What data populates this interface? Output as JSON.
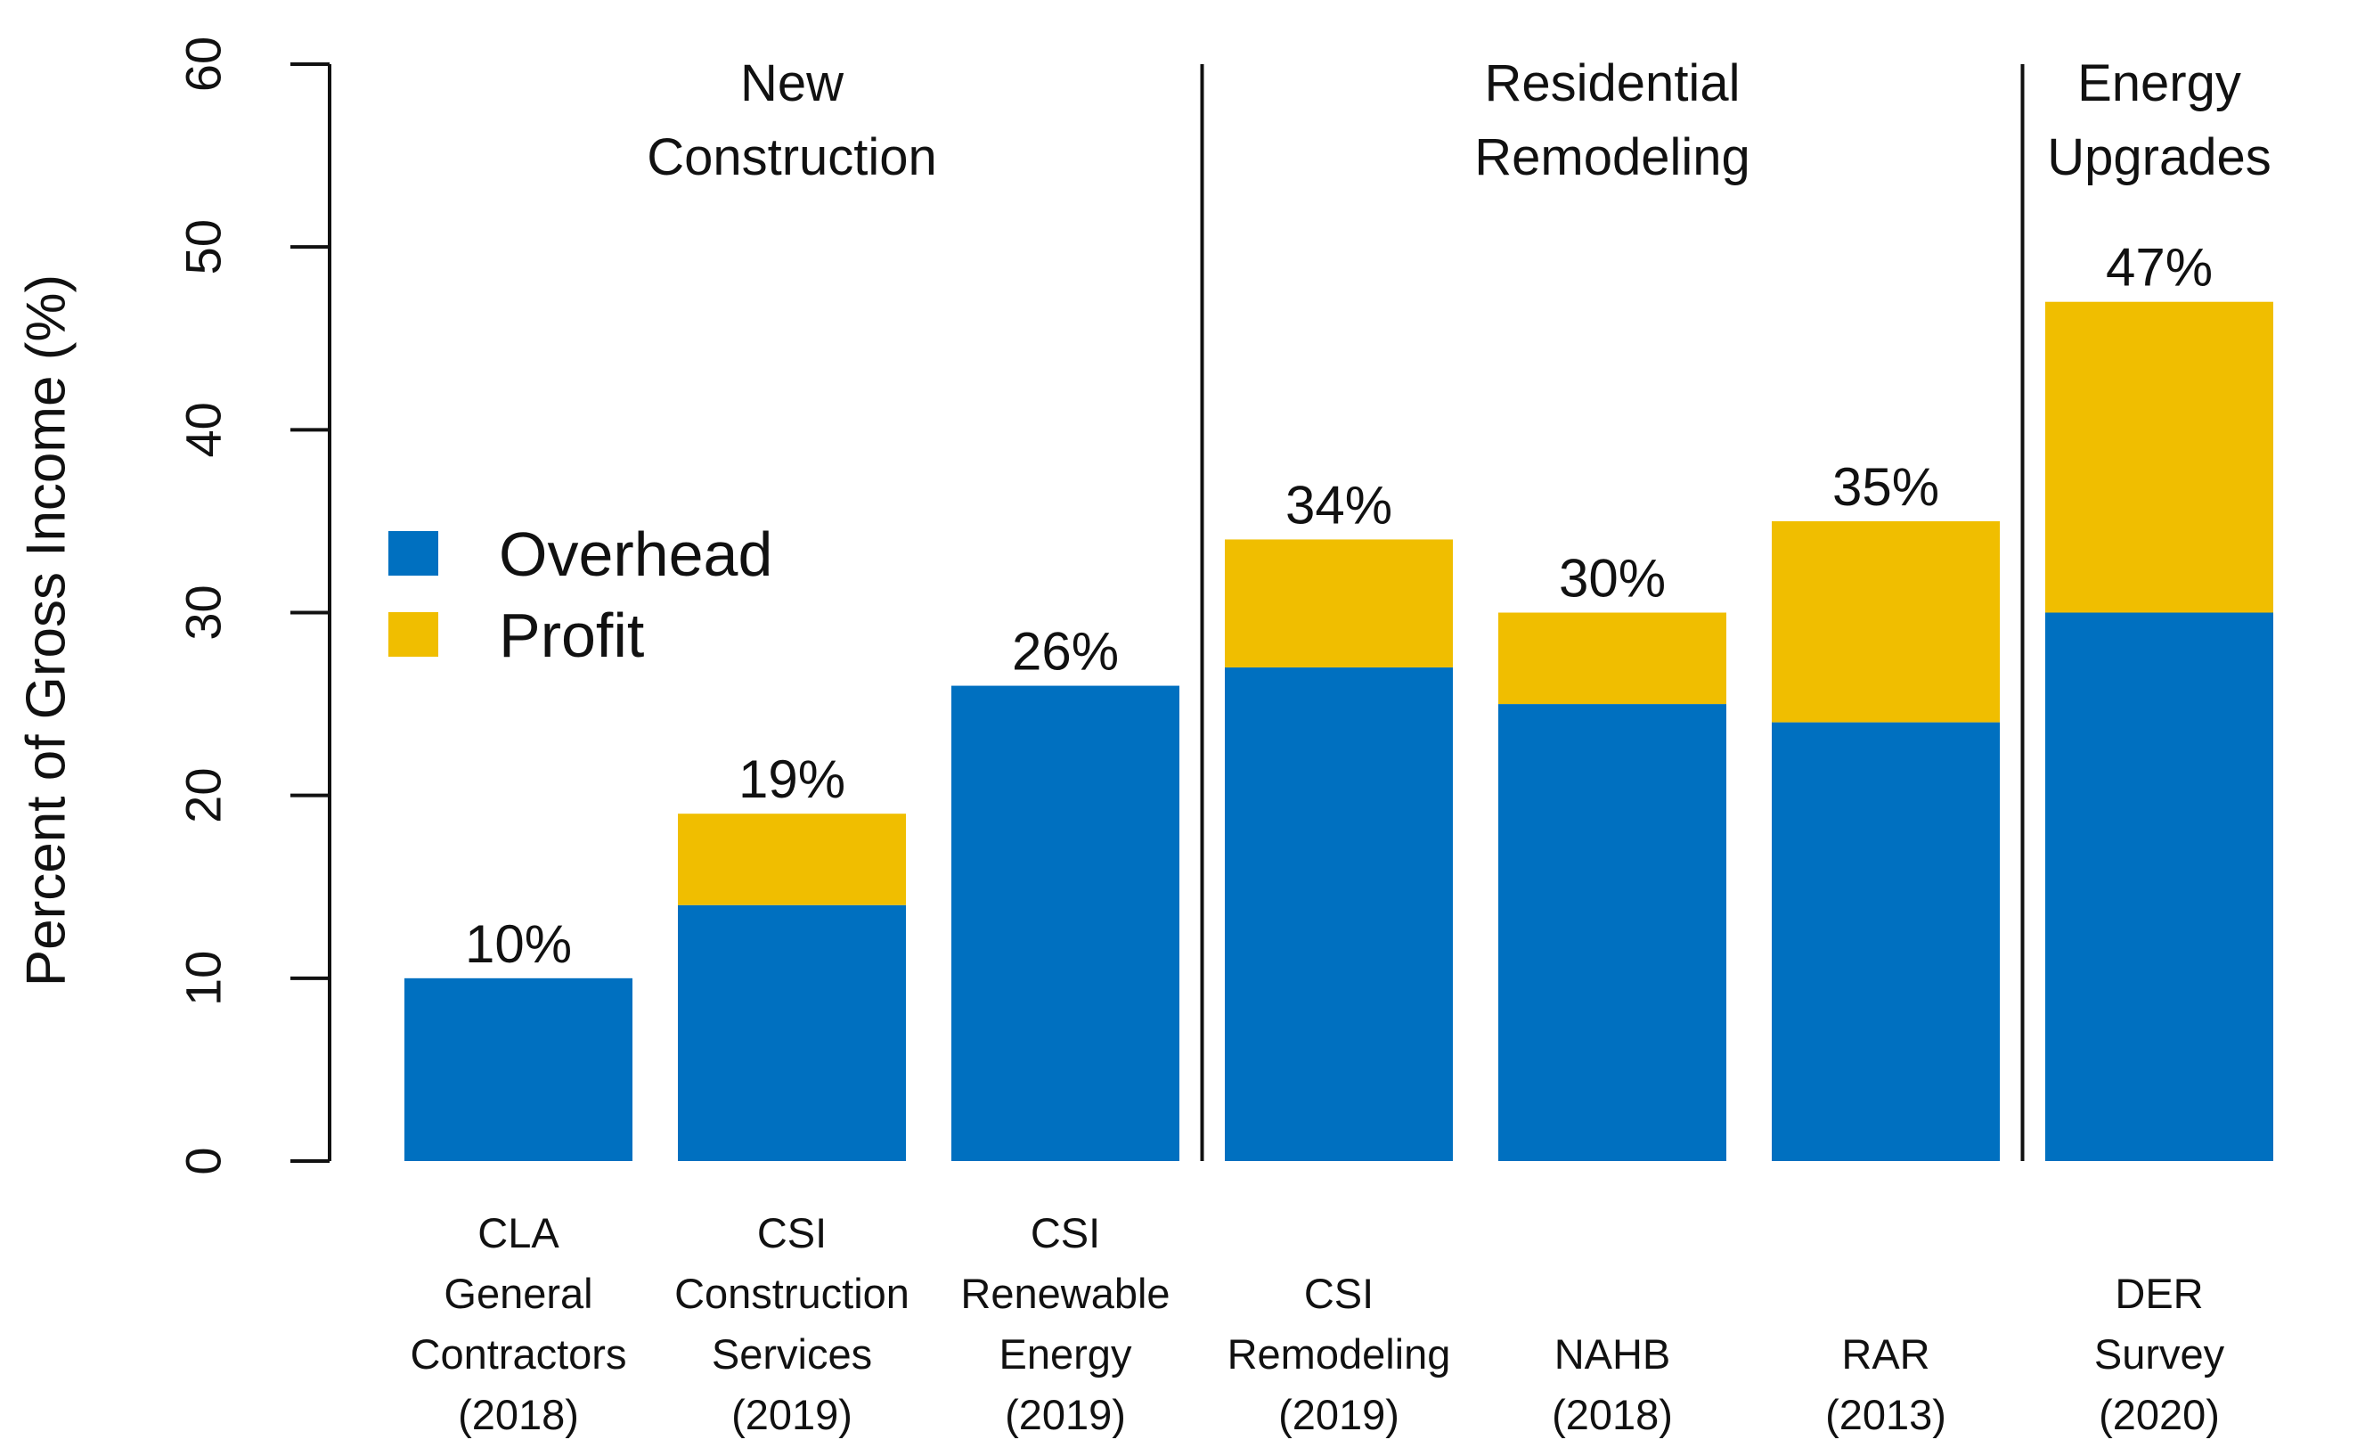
{
  "chart_data": {
    "type": "bar",
    "stacked": true,
    "ylabel": "Percent of Gross Income (%)",
    "ylim": [
      0,
      60
    ],
    "yticks": [
      0,
      10,
      20,
      30,
      40,
      50,
      60
    ],
    "categories": [
      {
        "lines": [
          "CLA",
          "General",
          "Contractors",
          "(2018)"
        ]
      },
      {
        "lines": [
          "CSI",
          "Construction",
          "Services",
          "(2019)"
        ]
      },
      {
        "lines": [
          "CSI",
          "Renewable",
          "Energy",
          "(2019)"
        ]
      },
      {
        "lines": [
          "CSI",
          "Remodeling",
          "(2019)"
        ]
      },
      {
        "lines": [
          "NAHB",
          "(2018)"
        ]
      },
      {
        "lines": [
          "RAR",
          "(2013)"
        ]
      },
      {
        "lines": [
          "DER",
          "Survey",
          "(2020)"
        ]
      }
    ],
    "series": [
      {
        "name": "Overhead",
        "color": "#0070C0",
        "values": [
          10,
          14,
          26,
          27,
          25,
          24,
          30
        ]
      },
      {
        "name": "Profit",
        "color": "#F0BE00",
        "values": [
          0,
          5,
          0,
          7,
          5,
          11,
          17
        ]
      }
    ],
    "total_labels": [
      "10%",
      "19%",
      "26%",
      "34%",
      "30%",
      "35%",
      "47%"
    ],
    "groups": [
      {
        "lines": [
          "New",
          "Construction"
        ],
        "first": 0,
        "last": 2
      },
      {
        "lines": [
          "Residential",
          "Remodeling"
        ],
        "first": 3,
        "last": 5
      },
      {
        "lines": [
          "Energy",
          "Upgrades"
        ],
        "first": 6,
        "last": 6
      }
    ],
    "legend": {
      "position": "left-middle",
      "entries": [
        "Overhead",
        "Profit"
      ]
    }
  }
}
